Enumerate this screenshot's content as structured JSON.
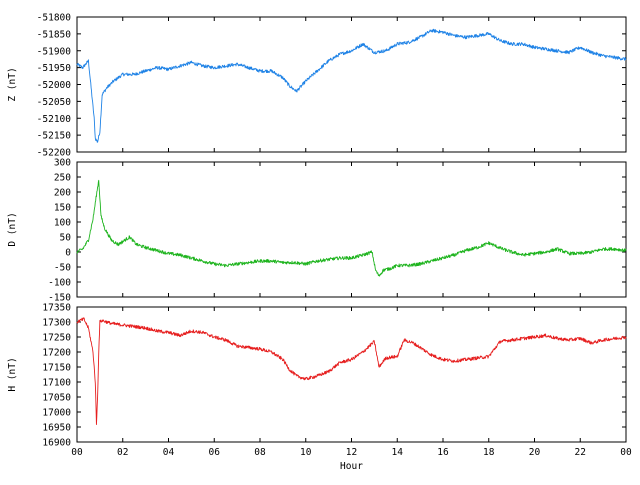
{
  "chart_data": [
    {
      "type": "line",
      "ylabel": "Z (nT)",
      "ylim": [
        -52200,
        -51800
      ],
      "yticks": [
        -51800,
        -51850,
        -51900,
        -51950,
        -52000,
        -52050,
        -52100,
        -52150,
        -52200
      ],
      "color": "#1e82e6",
      "series": [
        {
          "x": [
            0,
            0.25,
            0.5,
            0.75,
            0.8,
            0.9,
            1.0,
            1.1,
            1.3,
            1.6,
            2.0,
            2.5,
            3.0,
            3.5,
            4.0,
            4.5,
            5.0,
            5.5,
            6.0,
            6.5,
            7.0,
            7.5,
            8.0,
            8.5,
            9.0,
            9.3,
            9.6,
            10.0,
            10.5,
            11.0,
            11.5,
            12.0,
            12.5,
            13.0,
            13.5,
            14.0,
            14.5,
            15.0,
            15.5,
            16.0,
            16.5,
            17.0,
            17.5,
            18.0,
            18.5,
            19.0,
            19.5,
            20.0,
            20.5,
            21.0,
            21.5,
            22.0,
            22.5,
            23.0,
            23.5,
            24.0
          ],
          "y": [
            -51940,
            -51950,
            -51930,
            -52100,
            -52160,
            -52170,
            -52140,
            -52030,
            -52010,
            -51990,
            -51970,
            -51970,
            -51960,
            -51950,
            -51955,
            -51945,
            -51935,
            -51945,
            -51950,
            -51945,
            -51940,
            -51950,
            -51960,
            -51960,
            -51980,
            -52005,
            -52020,
            -51990,
            -51960,
            -51930,
            -51910,
            -51900,
            -51880,
            -51905,
            -51900,
            -51880,
            -51875,
            -51860,
            -51840,
            -51845,
            -51855,
            -51860,
            -51855,
            -51850,
            -51870,
            -51880,
            -51880,
            -51890,
            -51895,
            -51900,
            -51905,
            -51890,
            -51905,
            -51915,
            -51920,
            -51925
          ]
        }
      ]
    },
    {
      "type": "line",
      "ylabel": "D (nT)",
      "ylim": [
        -150,
        300
      ],
      "yticks": [
        300,
        250,
        200,
        150,
        100,
        50,
        0,
        -50,
        -100,
        -150
      ],
      "color": "#1eb41e",
      "series": [
        {
          "x": [
            0,
            0.25,
            0.5,
            0.7,
            0.85,
            0.95,
            1.05,
            1.2,
            1.5,
            1.8,
            2.1,
            2.3,
            2.6,
            3.0,
            3.5,
            4.0,
            4.5,
            5.0,
            5.5,
            6.0,
            6.5,
            7.0,
            7.5,
            8.0,
            8.5,
            9.0,
            9.5,
            10.0,
            10.5,
            11.0,
            11.5,
            12.0,
            12.5,
            12.9,
            13.05,
            13.2,
            13.4,
            13.7,
            14.0,
            14.5,
            15.0,
            15.5,
            16.0,
            16.5,
            17.0,
            17.5,
            18.0,
            18.3,
            18.6,
            19.0,
            19.5,
            20.0,
            20.5,
            21.0,
            21.5,
            22.0,
            22.5,
            23.0,
            23.5,
            24.0
          ],
          "y": [
            0,
            10,
            40,
            110,
            190,
            240,
            120,
            80,
            40,
            25,
            40,
            50,
            25,
            15,
            5,
            -5,
            -10,
            -20,
            -30,
            -40,
            -45,
            -40,
            -35,
            -30,
            -30,
            -35,
            -35,
            -40,
            -30,
            -25,
            -20,
            -20,
            -10,
            0,
            -60,
            -80,
            -60,
            -55,
            -45,
            -45,
            -40,
            -30,
            -20,
            -10,
            5,
            15,
            30,
            20,
            10,
            0,
            -10,
            -5,
            0,
            10,
            -5,
            -5,
            0,
            10,
            10,
            5
          ]
        }
      ]
    },
    {
      "type": "line",
      "ylabel": "H (nT)",
      "xlabel": "Hour",
      "ylim": [
        16900,
        17350
      ],
      "yticks": [
        17350,
        17300,
        17250,
        17200,
        17150,
        17100,
        17050,
        17000,
        16950,
        16900
      ],
      "color": "#e61e1e",
      "xlim": [
        0,
        24
      ],
      "xticks": [
        "00",
        "02",
        "04",
        "06",
        "08",
        "10",
        "12",
        "14",
        "16",
        "18",
        "20",
        "22",
        "00"
      ],
      "series": [
        {
          "x": [
            0,
            0.3,
            0.5,
            0.7,
            0.8,
            0.85,
            0.9,
            0.95,
            1.0,
            1.1,
            1.5,
            2.0,
            2.5,
            3.0,
            3.5,
            4.0,
            4.5,
            5.0,
            5.5,
            6.0,
            6.5,
            7.0,
            7.5,
            8.0,
            8.5,
            9.0,
            9.3,
            9.6,
            10.0,
            10.5,
            11.0,
            11.5,
            12.0,
            12.5,
            13.0,
            13.2,
            13.5,
            14.0,
            14.3,
            14.7,
            15.0,
            15.5,
            16.0,
            16.5,
            17.0,
            17.5,
            18.0,
            18.5,
            19.0,
            19.5,
            20.0,
            20.5,
            21.0,
            21.5,
            22.0,
            22.5,
            23.0,
            23.5,
            24.0
          ],
          "y": [
            17300,
            17310,
            17280,
            17200,
            17100,
            16960,
            17050,
            17200,
            17300,
            17305,
            17295,
            17290,
            17285,
            17280,
            17270,
            17265,
            17255,
            17270,
            17265,
            17250,
            17240,
            17220,
            17215,
            17210,
            17200,
            17175,
            17140,
            17120,
            17110,
            17120,
            17135,
            17165,
            17175,
            17200,
            17235,
            17150,
            17180,
            17185,
            17240,
            17230,
            17215,
            17190,
            17175,
            17170,
            17175,
            17180,
            17185,
            17235,
            17240,
            17245,
            17250,
            17255,
            17245,
            17240,
            17245,
            17230,
            17240,
            17245,
            17250
          ]
        }
      ]
    }
  ]
}
